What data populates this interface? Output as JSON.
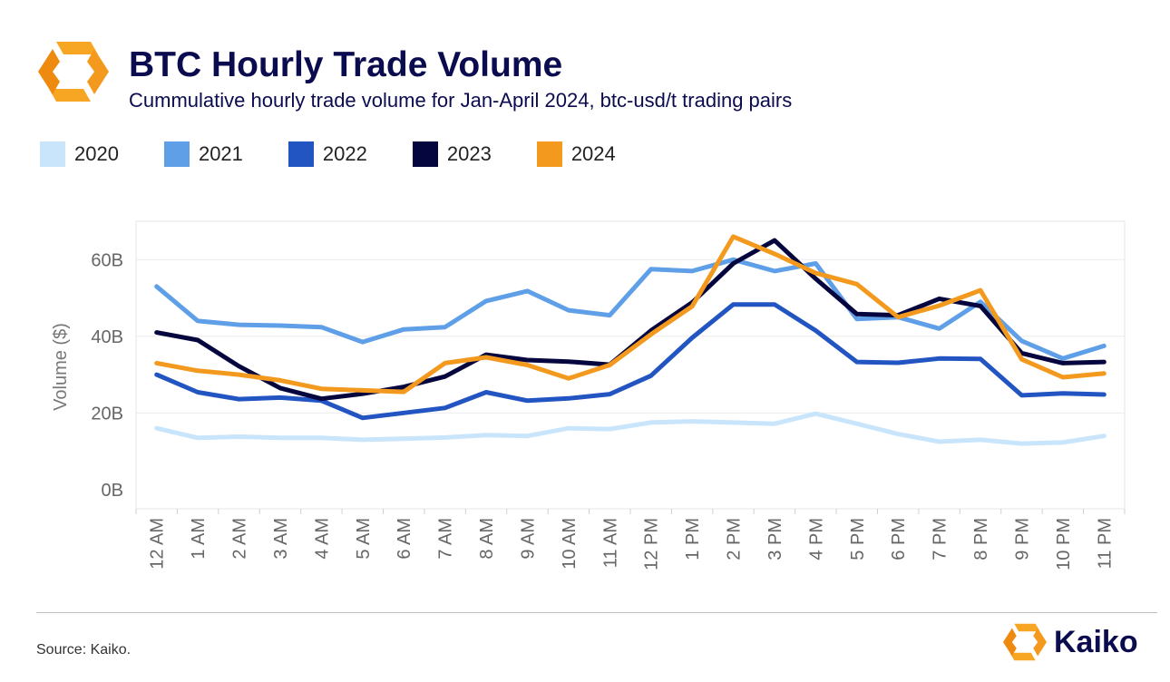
{
  "header": {
    "title": "BTC Hourly Trade Volume",
    "subtitle": "Cummulative hourly trade volume for Jan-April 2024, btc-usd/t trading pairs"
  },
  "footer": {
    "source": "Source: Kaiko.",
    "brand": "Kaiko"
  },
  "colors": {
    "brand_orange": "#f39a1e",
    "title_navy": "#0b0b4f"
  },
  "chart_data": {
    "type": "line",
    "title": "BTC Hourly Trade Volume",
    "ylabel": "Volume ($)",
    "xlabel": "",
    "ylim": [
      -5,
      70
    ],
    "yticks": [
      0,
      20,
      40,
      60
    ],
    "ytick_labels": [
      "0B",
      "20B",
      "40B",
      "60B"
    ],
    "grid": true,
    "legend_position": "top",
    "categories": [
      "12 AM",
      "1 AM",
      "2 AM",
      "3 AM",
      "4 AM",
      "5 AM",
      "6 AM",
      "7 AM",
      "8 AM",
      "9 AM",
      "10 AM",
      "11 AM",
      "12 PM",
      "1 PM",
      "2 PM",
      "3 PM",
      "4 PM",
      "5 PM",
      "6 PM",
      "7 PM",
      "8 PM",
      "9 PM",
      "10 PM",
      "11 PM"
    ],
    "series": [
      {
        "name": "2020",
        "color": "#c9e5fb",
        "values": [
          16,
          13.5,
          13.8,
          13.5,
          13.5,
          13,
          13.3,
          13.6,
          14.2,
          14,
          16,
          15.8,
          17.5,
          17.8,
          17.5,
          17.2,
          19.8,
          17.2,
          14.5,
          12.5,
          13,
          12,
          12.3,
          14
        ]
      },
      {
        "name": "2021",
        "color": "#5e9fe8",
        "values": [
          53,
          44,
          43,
          42.8,
          42.4,
          38.5,
          41.8,
          42.4,
          49.2,
          51.8,
          46.8,
          45.5,
          57.5,
          57,
          60,
          57,
          59,
          44.5,
          45,
          42,
          49,
          38.8,
          34.2,
          37.5
        ]
      },
      {
        "name": "2022",
        "color": "#2355c2",
        "values": [
          30,
          25.4,
          23.6,
          24,
          23.2,
          18.7,
          20,
          21.3,
          25.4,
          23.2,
          23.8,
          24.9,
          29.7,
          39.6,
          48.3,
          48.3,
          41.5,
          33.3,
          33.1,
          34.2,
          34.1,
          24.6,
          25.1,
          24.8
        ]
      },
      {
        "name": "2023",
        "color": "#06063f",
        "values": [
          41,
          39,
          32.2,
          26.5,
          23.7,
          25,
          26.8,
          29.5,
          35.2,
          33.8,
          33.4,
          32.6,
          41.5,
          48.8,
          59,
          65,
          55,
          45.8,
          45.5,
          49.8,
          47.9,
          35.6,
          33,
          33.3
        ]
      },
      {
        "name": "2024",
        "color": "#f39a1e",
        "values": [
          33,
          31,
          30,
          28.5,
          26.3,
          25.9,
          25.5,
          33,
          34.5,
          32.5,
          29,
          32.5,
          40.5,
          47.8,
          66,
          61.5,
          56.5,
          53.6,
          45,
          48,
          52,
          34,
          29.3,
          30.3
        ]
      }
    ]
  }
}
